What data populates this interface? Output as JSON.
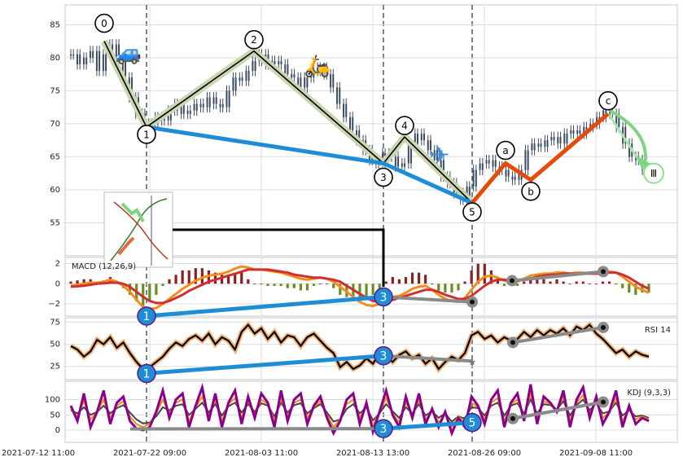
{
  "chart_data": {
    "type": "line",
    "x_ticks": [
      "2021-07-12 11:00",
      "2021-07-22 09:00",
      "2021-08-03 11:00",
      "2021-08-13 13:00",
      "2021-08-26 09:00",
      "2021-09-08 11:00"
    ],
    "price_panel": {
      "type": "candlestick",
      "ylim": [
        50,
        88
      ],
      "yticks": [
        55,
        60,
        65,
        70,
        75,
        80,
        85
      ],
      "close_series": [
        80.5,
        79,
        80,
        81,
        78,
        80.5,
        82,
        80,
        77,
        74,
        71.5,
        69,
        70,
        71,
        70.5,
        72,
        73,
        71.5,
        72,
        73,
        72.5,
        74,
        73,
        72.5,
        75,
        77,
        76.5,
        78,
        79.5,
        80.5,
        79,
        79.5,
        79,
        77.5,
        77,
        75.5,
        77,
        78,
        78.5,
        77.5,
        75.5,
        73,
        71,
        69,
        67.5,
        66,
        64.5,
        64,
        65.5,
        65,
        63.5,
        64,
        67,
        68.5,
        67.5,
        66,
        64.5,
        62,
        61,
        59.5,
        58.5,
        60.5,
        63,
        64,
        64.5,
        63.5,
        63,
        62,
        61.5,
        63,
        66,
        67,
        66.5,
        67.5,
        68,
        67,
        68.5,
        69,
        68.5,
        69.5,
        70,
        71,
        72,
        71.5,
        69.5,
        67,
        65,
        64.5,
        63,
        62.5
      ],
      "wave_points": [
        {
          "label": "0",
          "value": 82.5
        },
        {
          "label": "1",
          "value": 69.5
        },
        {
          "label": "2",
          "value": 81.0
        },
        {
          "label": "3",
          "value": 64.0
        },
        {
          "label": "4",
          "value": 68.0
        },
        {
          "label": "5",
          "value": 58.0
        },
        {
          "label": "a",
          "value": 64.0
        },
        {
          "label": "b",
          "value": 61.5
        },
        {
          "label": "c",
          "value": 71.5
        },
        {
          "label": "Ⅲ",
          "value": 62.5
        }
      ]
    },
    "macd_panel": {
      "label": "MACD (12,26,9)",
      "ylim": [
        -3.2,
        2.6
      ],
      "yticks": [
        -2,
        0,
        2
      ],
      "dif": [
        -0.2,
        -0.1,
        0,
        0.1,
        0.1,
        0.2,
        0.4,
        0.2,
        -0.2,
        -0.8,
        -1.6,
        -2.3,
        -2.5,
        -2.4,
        -2,
        -1.5,
        -1,
        -0.5,
        -0.1,
        0.3,
        0.6,
        0.8,
        0.9,
        1,
        1.2,
        1.5,
        1.7,
        1.6,
        1.4,
        1.4,
        1.3,
        1.2,
        1.1,
        0.9,
        0.7,
        0.5,
        0.4,
        0.5,
        0.6,
        0.5,
        0.2,
        -0.3,
        -0.8,
        -1.3,
        -1.8,
        -2.1,
        -2.2,
        -2,
        -1.6,
        -1.3,
        -1.2,
        -0.9,
        -0.5,
        -0.3,
        -0.2,
        -0.6,
        -1.1,
        -1.5,
        -1.7,
        -1.8,
        -1.4,
        -0.6,
        0.2,
        0.7,
        0.8,
        0.6,
        0.3,
        0.2,
        0.2,
        0.5,
        0.8,
        0.9,
        1,
        1,
        1.1,
        1.1,
        1,
        1.1,
        1.1,
        1,
        1,
        1.1,
        1.2,
        1.1,
        0.7,
        0.2,
        -0.3,
        -0.6,
        -0.9
      ],
      "dea": [
        -0.3,
        -0.25,
        -0.2,
        -0.1,
        0,
        0.05,
        0.1,
        0.1,
        0,
        -0.3,
        -0.8,
        -1.3,
        -1.7,
        -1.9,
        -1.9,
        -1.7,
        -1.4,
        -1.1,
        -0.7,
        -0.4,
        -0.1,
        0.2,
        0.4,
        0.6,
        0.8,
        1,
        1.2,
        1.4,
        1.4,
        1.4,
        1.4,
        1.3,
        1.2,
        1.1,
        0.9,
        0.8,
        0.7,
        0.6,
        0.6,
        0.5,
        0.4,
        0.2,
        -0.2,
        -0.6,
        -1,
        -1.4,
        -1.7,
        -1.8,
        -1.7,
        -1.6,
        -1.4,
        -1.2,
        -1,
        -0.8,
        -0.6,
        -0.6,
        -0.8,
        -1.1,
        -1.3,
        -1.5,
        -1.5,
        -1.2,
        -0.7,
        -0.2,
        0.2,
        0.4,
        0.4,
        0.3,
        0.3,
        0.4,
        0.5,
        0.7,
        0.8,
        0.9,
        0.9,
        1,
        1,
        1,
        1,
        1,
        1,
        1,
        1.1,
        1.1,
        0.9,
        0.6,
        0.2,
        -0.2,
        -0.5
      ]
    },
    "rsi_panel": {
      "label": "RSI 14",
      "ylim": [
        10,
        80
      ],
      "yticks": [
        25,
        50,
        75
      ],
      "values": [
        48,
        44,
        36,
        42,
        55,
        50,
        58,
        46,
        52,
        40,
        30,
        22,
        24,
        30,
        36,
        45,
        52,
        48,
        56,
        60,
        54,
        62,
        50,
        58,
        54,
        44,
        64,
        72,
        62,
        68,
        56,
        64,
        52,
        60,
        58,
        48,
        58,
        62,
        54,
        46,
        40,
        24,
        30,
        22,
        26,
        34,
        28,
        40,
        36,
        30,
        38,
        42,
        34,
        38,
        28,
        34,
        22,
        30,
        36,
        32,
        40,
        60,
        64,
        56,
        60,
        52,
        58,
        54,
        56,
        64,
        58,
        66,
        60,
        66,
        62,
        68,
        60,
        70,
        66,
        72,
        62,
        56,
        48,
        40,
        44,
        36,
        42,
        38,
        36
      ],
      "markers": [
        {
          "label": "1",
          "value": 17
        },
        {
          "label": "3",
          "value": 37
        },
        {
          "label": "",
          "value": 31
        },
        {
          "label": "",
          "value": 52
        },
        {
          "label": "",
          "value": 69
        }
      ]
    },
    "kdj_panel": {
      "label": "KDJ (9,3,3)",
      "ylim": [
        -40,
        160
      ],
      "yticks": [
        0,
        50,
        100
      ],
      "j": [
        80,
        30,
        120,
        10,
        60,
        130,
        20,
        90,
        110,
        30,
        5,
        0,
        10,
        60,
        130,
        40,
        100,
        120,
        10,
        80,
        140,
        30,
        120,
        10,
        90,
        130,
        20,
        110,
        40,
        120,
        90,
        10,
        130,
        30,
        100,
        120,
        20,
        80,
        110,
        40,
        -10,
        30,
        100,
        120,
        20,
        90,
        -5,
        60,
        130,
        50,
        10,
        110,
        40,
        120,
        20,
        70,
        10,
        60,
        -10,
        40,
        10,
        110,
        80,
        20,
        100,
        130,
        10,
        90,
        120,
        30,
        150,
        20,
        110,
        90,
        60,
        130,
        10,
        100,
        140,
        40,
        110,
        20,
        60,
        130,
        10,
        80,
        20,
        40,
        30
      ],
      "k": [
        70,
        45,
        95,
        35,
        60,
        100,
        40,
        80,
        95,
        45,
        20,
        10,
        20,
        55,
        100,
        55,
        90,
        100,
        30,
        75,
        110,
        45,
        100,
        30,
        85,
        105,
        40,
        95,
        50,
        100,
        85,
        30,
        105,
        45,
        90,
        100,
        40,
        75,
        95,
        50,
        10,
        35,
        85,
        100,
        40,
        80,
        15,
        60,
        105,
        55,
        25,
        90,
        50,
        100,
        35,
        65,
        25,
        55,
        10,
        45,
        25,
        90,
        75,
        35,
        90,
        105,
        30,
        85,
        100,
        45,
        120,
        40,
        95,
        85,
        65,
        110,
        30,
        90,
        115,
        55,
        95,
        40,
        60,
        105,
        30,
        70,
        35,
        45,
        35
      ],
      "d": [
        65,
        55,
        75,
        50,
        60,
        80,
        55,
        72,
        82,
        58,
        35,
        22,
        25,
        45,
        75,
        65,
        80,
        85,
        50,
        70,
        90,
        58,
        85,
        48,
        78,
        90,
        58,
        85,
        60,
        88,
        80,
        45,
        90,
        58,
        82,
        88,
        55,
        72,
        85,
        58,
        28,
        35,
        70,
        85,
        55,
        75,
        32,
        55,
        85,
        62,
        40,
        75,
        55,
        85,
        48,
        62,
        40,
        55,
        28,
        45,
        38,
        75,
        72,
        48,
        80,
        90,
        48,
        80,
        88,
        55,
        100,
        55,
        85,
        82,
        68,
        95,
        48,
        82,
        100,
        65,
        88,
        55,
        62,
        90,
        48,
        65,
        45,
        48,
        40
      ],
      "markers": [
        {
          "label": "3",
          "value": 5
        },
        {
          "label": "5",
          "value": 25
        },
        {
          "label": "",
          "value": 38
        },
        {
          "label": "",
          "value": 92
        }
      ]
    }
  },
  "colors": {
    "candle": "#3b4b63",
    "wave_line": "#000000",
    "wave_glow": "#c9d6b0",
    "blue_line": "#1f8dd6",
    "orange_line": "#e64a0a",
    "gray_line": "#8a8a8a",
    "macd_dif": "#f28c1a",
    "macd_dea": "#d03030",
    "macd_hist_pos": "#8b2020",
    "macd_hist_neg": "#6b8e23",
    "rsi_line": "#000000",
    "rsi_glow": "#f2b37a",
    "kdj_j": "#8b008b",
    "kdj_k": "#f28c1a",
    "kdj_d": "#444444",
    "marker_blue": "#1f8dd6",
    "marker_gray": "#8a8a8a",
    "grid": "#dcdcdc",
    "vline": "#4a5a70"
  }
}
